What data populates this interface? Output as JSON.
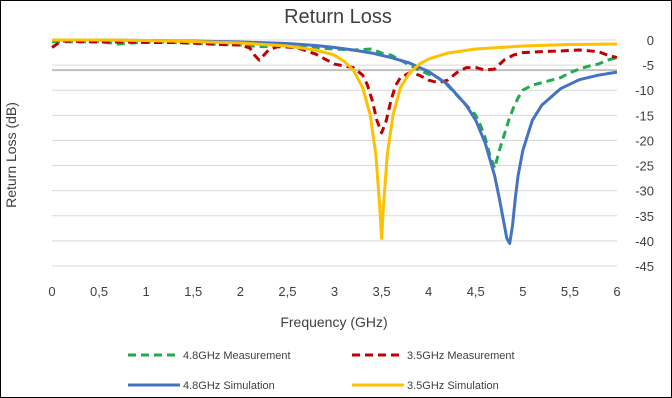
{
  "chart_data": {
    "type": "line",
    "title": "Return Loss",
    "xlabel": "Frequency (GHz)",
    "ylabel": "Return Loss (dB)",
    "xlim": [
      0,
      6
    ],
    "ylim": [
      -45,
      0
    ],
    "x_ticks": [
      "0",
      "0,5",
      "1",
      "1,5",
      "2",
      "2,5",
      "3",
      "3,5",
      "4",
      "4,5",
      "5",
      "5,5",
      "6"
    ],
    "y_ticks": [
      "0",
      "-5",
      "-10",
      "-15",
      "-20",
      "-25",
      "-30",
      "-35",
      "-40",
      "-45"
    ],
    "y_tick_values": [
      0,
      -5,
      -10,
      -15,
      -20,
      -25,
      -30,
      -35,
      -40,
      -45
    ],
    "grid": true,
    "reference_line_y": -6,
    "legend_position": "bottom",
    "series": [
      {
        "name": "4.8GHz Measurement",
        "color": "#22aa4d",
        "style": "dashed",
        "x": [
          0,
          0.3,
          0.5,
          0.7,
          1.0,
          1.3,
          1.5,
          1.8,
          2.0,
          2.2,
          2.5,
          2.8,
          3.0,
          3.2,
          3.4,
          3.5,
          3.6,
          3.7,
          3.8,
          3.9,
          4.0,
          4.1,
          4.2,
          4.3,
          4.4,
          4.5,
          4.55,
          4.6,
          4.65,
          4.7,
          4.75,
          4.8,
          4.85,
          4.9,
          4.95,
          5.0,
          5.1,
          5.2,
          5.3,
          5.4,
          5.5,
          5.6,
          5.7,
          5.8,
          5.9,
          6.0
        ],
        "y": [
          -0.3,
          -0.4,
          -0.3,
          -0.8,
          -0.4,
          -0.5,
          -0.7,
          -0.9,
          -1.0,
          -1.3,
          -1.4,
          -1.6,
          -1.8,
          -2.0,
          -1.8,
          -2.6,
          -3.0,
          -4.0,
          -5.0,
          -6.0,
          -6.8,
          -7.5,
          -9.0,
          -11.0,
          -13.0,
          -15.0,
          -17.0,
          -19.5,
          -23.0,
          -25.5,
          -22.0,
          -19.0,
          -16.0,
          -13.5,
          -11.5,
          -10.0,
          -9.0,
          -8.5,
          -8.0,
          -7.5,
          -6.5,
          -5.8,
          -5.2,
          -4.8,
          -4.0,
          -3.5
        ]
      },
      {
        "name": "3.5GHz Measurement",
        "color": "#c00000",
        "style": "dashed",
        "x": [
          0,
          0.1,
          0.3,
          0.5,
          0.8,
          1.0,
          1.3,
          1.5,
          1.8,
          2.0,
          2.1,
          2.15,
          2.2,
          2.25,
          2.3,
          2.4,
          2.6,
          2.8,
          3.0,
          3.2,
          3.3,
          3.35,
          3.4,
          3.45,
          3.5,
          3.55,
          3.6,
          3.65,
          3.7,
          3.8,
          3.9,
          4.0,
          4.1,
          4.2,
          4.3,
          4.4,
          4.5,
          4.6,
          4.7,
          4.8,
          4.9,
          5.0,
          5.2,
          5.4,
          5.6,
          5.8,
          5.9,
          6.0
        ],
        "y": [
          -1.5,
          -0.2,
          -0.3,
          -0.4,
          -0.4,
          -0.5,
          -0.5,
          -0.6,
          -0.9,
          -1.0,
          -1.6,
          -3.0,
          -4.0,
          -3.0,
          -2.0,
          -1.3,
          -1.5,
          -2.8,
          -4.8,
          -5.5,
          -7.0,
          -9.0,
          -12.0,
          -16.0,
          -18.5,
          -16.0,
          -12.0,
          -9.0,
          -7.5,
          -6.5,
          -7.0,
          -8.0,
          -8.5,
          -8.0,
          -6.5,
          -5.5,
          -5.5,
          -6.0,
          -5.8,
          -4.0,
          -3.0,
          -2.5,
          -2.3,
          -2.2,
          -2.0,
          -2.3,
          -3.0,
          -3.5
        ]
      },
      {
        "name": "4.8GHz Simulation",
        "color": "#4472c4",
        "style": "solid",
        "x": [
          0,
          0.5,
          1.0,
          1.5,
          2.0,
          2.5,
          2.8,
          3.0,
          3.2,
          3.4,
          3.6,
          3.8,
          4.0,
          4.2,
          4.4,
          4.5,
          4.6,
          4.7,
          4.75,
          4.8,
          4.83,
          4.86,
          4.89,
          4.92,
          4.95,
          5.0,
          5.1,
          5.2,
          5.4,
          5.6,
          5.8,
          6.0
        ],
        "y": [
          0,
          0,
          -0.1,
          -0.2,
          -0.4,
          -0.7,
          -1.1,
          -1.5,
          -2.0,
          -2.6,
          -3.5,
          -4.6,
          -6.3,
          -8.8,
          -13.0,
          -16.0,
          -20.5,
          -27.0,
          -31.5,
          -36.5,
          -39.5,
          -40.5,
          -37.0,
          -31.5,
          -27.0,
          -22.0,
          -16.0,
          -13.0,
          -9.7,
          -7.9,
          -7.0,
          -6.4
        ]
      },
      {
        "name": "3.5GHz Simulation",
        "color": "#ffc000",
        "style": "solid",
        "x": [
          0,
          0.5,
          1.0,
          1.5,
          2.0,
          2.5,
          2.8,
          3.0,
          3.1,
          3.2,
          3.3,
          3.38,
          3.44,
          3.48,
          3.5,
          3.52,
          3.56,
          3.62,
          3.7,
          3.8,
          3.9,
          4.0,
          4.2,
          4.5,
          5.0,
          5.5,
          6.0
        ],
        "y": [
          0,
          0,
          -0.1,
          -0.3,
          -0.6,
          -1.2,
          -2.0,
          -3.0,
          -4.2,
          -6.0,
          -9.5,
          -15.0,
          -23.0,
          -33.0,
          -39.5,
          -33.0,
          -23.0,
          -15.0,
          -9.5,
          -6.5,
          -4.8,
          -3.8,
          -2.6,
          -1.8,
          -1.2,
          -0.9,
          -0.8
        ]
      }
    ]
  }
}
